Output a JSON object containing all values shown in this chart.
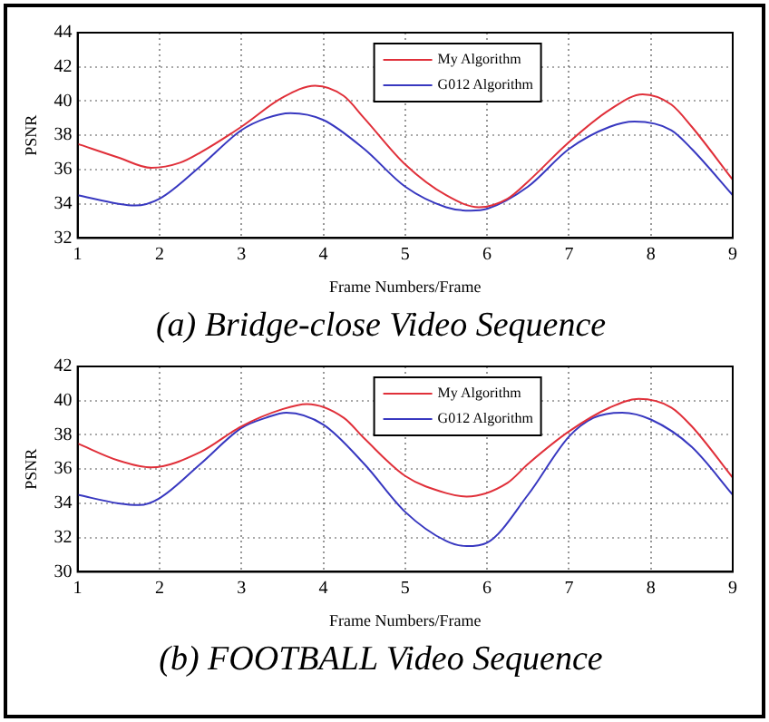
{
  "chart_data": [
    {
      "type": "line",
      "title": "(a) Bridge-close Video Sequence",
      "xlabel": "Frame Numbers/Frame",
      "ylabel": "PSNR",
      "xlim": [
        1,
        9
      ],
      "xticks": [
        1,
        2,
        3,
        4,
        5,
        6,
        7,
        8,
        9
      ],
      "ylim": [
        32,
        44
      ],
      "yticks": [
        32,
        34,
        36,
        38,
        40,
        42,
        44
      ],
      "grid": true,
      "legend": "top",
      "series": [
        {
          "name": "My Algorithm",
          "color": "#e0303a",
          "x": [
            1,
            1.5,
            1.9,
            2.25,
            2.5,
            3,
            3.5,
            3.9,
            4.25,
            4.5,
            5,
            5.5,
            5.9,
            6.25,
            6.5,
            7,
            7.5,
            7.9,
            8.25,
            8.5,
            9
          ],
          "values": [
            37.5,
            36.7,
            36.1,
            36.4,
            37.0,
            38.5,
            40.2,
            40.9,
            40.3,
            39.0,
            36.3,
            34.5,
            33.8,
            34.3,
            35.3,
            37.6,
            39.5,
            40.4,
            39.8,
            38.5,
            35.4
          ]
        },
        {
          "name": "G012 Algorithm",
          "color": "#3838c0",
          "x": [
            1,
            1.5,
            1.7,
            2,
            2.5,
            3,
            3.3,
            3.6,
            4,
            4.5,
            5,
            5.5,
            5.8,
            6,
            6.5,
            7,
            7.5,
            7.8,
            8.25,
            8.5,
            9
          ],
          "values": [
            34.5,
            34.0,
            33.9,
            34.3,
            36.2,
            38.3,
            39.0,
            39.3,
            38.9,
            37.2,
            35.0,
            33.8,
            33.6,
            33.7,
            35.0,
            37.2,
            38.5,
            38.8,
            38.3,
            37.2,
            34.5
          ]
        }
      ]
    },
    {
      "type": "line",
      "title": "(b) FOOTBALL Video Sequence",
      "xlabel": "Frame Numbers/Frame",
      "ylabel": "PSNR",
      "xlim": [
        1,
        9
      ],
      "xticks": [
        1,
        2,
        3,
        4,
        5,
        6,
        7,
        8,
        9
      ],
      "ylim": [
        30,
        42
      ],
      "yticks": [
        30,
        32,
        34,
        36,
        38,
        40,
        42
      ],
      "grid": true,
      "legend": "top",
      "series": [
        {
          "name": "My Algorithm",
          "color": "#e0303a",
          "x": [
            1,
            1.5,
            1.9,
            2.5,
            3,
            3.5,
            3.8,
            4.25,
            4.5,
            5,
            5.5,
            5.75,
            6.25,
            6.5,
            7,
            7.5,
            7.85,
            8.25,
            8.5,
            9
          ],
          "values": [
            37.5,
            36.5,
            36.1,
            37.0,
            38.5,
            39.5,
            39.8,
            39.0,
            37.8,
            35.6,
            34.6,
            34.4,
            35.2,
            36.3,
            38.2,
            39.6,
            40.1,
            39.6,
            38.5,
            35.5
          ]
        },
        {
          "name": "G012 Algorithm",
          "color": "#3838c0",
          "x": [
            1,
            1.5,
            1.75,
            2,
            2.5,
            3,
            3.3,
            3.55,
            4,
            4.5,
            5,
            5.5,
            5.75,
            6,
            6.5,
            7,
            7.3,
            7.65,
            8,
            8.5,
            9
          ],
          "values": [
            34.5,
            34.0,
            33.9,
            34.3,
            36.3,
            38.4,
            39.0,
            39.3,
            38.6,
            36.3,
            33.5,
            31.8,
            31.5,
            31.7,
            34.5,
            37.9,
            39.0,
            39.3,
            38.9,
            37.3,
            34.5
          ]
        }
      ]
    }
  ]
}
